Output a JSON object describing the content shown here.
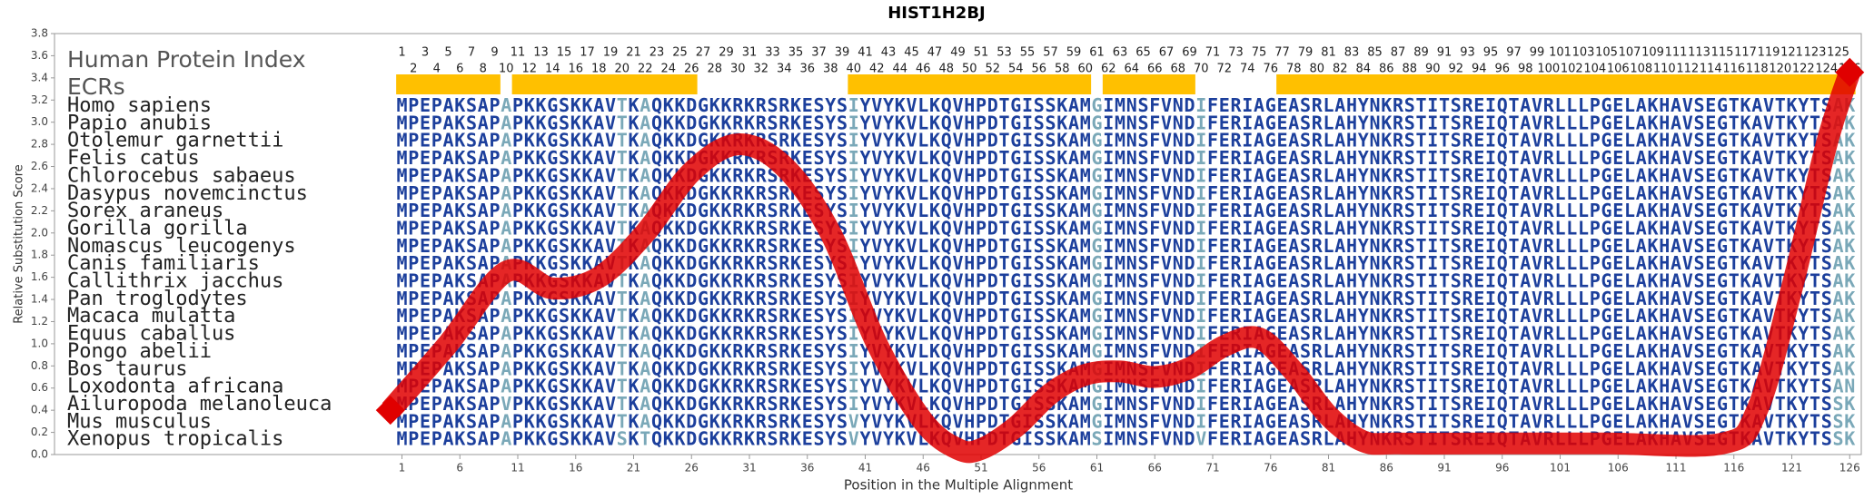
{
  "chart_data": {
    "type": "line",
    "title": "HIST1H2BJ",
    "ylabel": "Relative Substitution Score",
    "xlabel": "Position in the Multiple Alignment",
    "index_label": "Human Protein Index",
    "ecr_label": "ECRs",
    "ecr_color": "#ffc000",
    "ecrs": [
      [
        1,
        9
      ],
      [
        11,
        26
      ],
      [
        40,
        60
      ],
      [
        62,
        69
      ],
      [
        77,
        126
      ]
    ],
    "positions": [
      1,
      2,
      3,
      4,
      5,
      6,
      7,
      8,
      9,
      10,
      11,
      12,
      13,
      14,
      15,
      16,
      17,
      18,
      19,
      20,
      21,
      22,
      23,
      24,
      25,
      26,
      27,
      28,
      29,
      30,
      31,
      32,
      33,
      34,
      35,
      36,
      37,
      38,
      39,
      40,
      41,
      42,
      43,
      44,
      45,
      46,
      47,
      48,
      49,
      50,
      51,
      52,
      53,
      54,
      55,
      56,
      57,
      58,
      59,
      60,
      61,
      62,
      63,
      64,
      65,
      66,
      67,
      68,
      69,
      70,
      71,
      72,
      73,
      74,
      75,
      76,
      77,
      78,
      79,
      80,
      81,
      82,
      83,
      84,
      85,
      86,
      87,
      88,
      89,
      90,
      91,
      92,
      93,
      94,
      95,
      96,
      97,
      98,
      99,
      100,
      101,
      102,
      103,
      104,
      105,
      106,
      107,
      108,
      109,
      110,
      111,
      112,
      113,
      114,
      115,
      116,
      117,
      118,
      119,
      120,
      121,
      122,
      123,
      124,
      125,
      126
    ],
    "species": [
      {
        "name": "Homo sapiens",
        "sequence": "MPEPAKSAPAPKKGSKKAVTKAQKKDGKKRKRSRKESYSIYVYKVLKQVHPDTGISSKAMGIMNSFVNDIFERIAGEASRLAHYNKRSTITSREIQTAVRLLLPGELAKHAVSEGTKAVTKYTSAK"
      },
      {
        "name": "Papio anubis",
        "sequence": "MPEPAKSAPAPKKGSKKAVTKAQKKDGKKRKRSRKESYSIYVYKVLKQVHPDTGISSKAMGIMNSFVNDIFERIAGEASRLAHYNKRSTITSREIQTAVRLLLPGELAKHAVSEGTKAVTKYTSAK"
      },
      {
        "name": "Otolemur garnettii",
        "sequence": "MPEPAKSAPAPKKGSKKAVTKAQKKDGKKRKRSRKESYSIYVYKVLKQVHPDTGISSKAMGIMNSFVNDIFERIAGEASRLAHYNKRSTITSREIQTAVRLLLPGELAKHAVSEGTKAVTKYTSAK"
      },
      {
        "name": "Felis catus",
        "sequence": "MPEPAKSAPAPKKGSKKAVTKAQKKDGKKRKRSRKESYSIYVYKVLKQVHPDTGISSKAMGIMNSFVNDIFERIAGEASRLAHYNKRSTITSREIQTAVRLLLPGELAKHAVSEGTKAVTKYTSAK"
      },
      {
        "name": "Chlorocebus sabaeus",
        "sequence": "MPEPAKSAPAPKKGSKKAVTKAQKKDGKKRKRSRKESYSIYVYKVLKQVHPDTGISSKAMGIMNSFVNDIFERIAGEASRLAHYNKRSTITSREIQTAVRLLLPGELAKHAVSEGTKAVTKYTSAK"
      },
      {
        "name": "Dasypus novemcinctus",
        "sequence": "MPEPAKSAPAPKKGSKKAVTKAQKKDGKKRKRSRKESYSIYVYKVLKQVHPDTGISSKAMGIMNSFVNDIFERIAGEASRLAHYNKRSTITSREIQTAVRLLLPGELAKHAVSEGTKAVTKYTSAK"
      },
      {
        "name": "Sorex araneus",
        "sequence": "MPEPAKSAPAPKKGSKKAVTKAQKKDGKKRKRSRKESYSIYVYKVLKQVHPDTGISSKAMGIMNSFVNDIFERIAGEASRLAHYNKRSTITSREIQTAVRLLLPGELAKHAVSEGTKAVTKYTSAK"
      },
      {
        "name": "Gorilla gorilla",
        "sequence": "MPEPAKSAPAPKKGSKKAVTKAQKKDGKKRKRSRKESYSIYVYKVLKQVHPDTGISSKAMGIMNSFVNDIFERIAGEASRLAHYNKRSTITSREIQTAVRLLLPGELAKHAVSEGTKAVTKYTSAK"
      },
      {
        "name": "Nomascus leucogenys",
        "sequence": "MPEPAKSAPAPKKGSKKAVTKAQKKDGKKRKRSRKESYSIYVYKVLKQVHPDTGISSKAMGIMNSFVNDIFERIAGEASRLAHYNKRSTITSREIQTAVRLLLPGELAKHAVSEGTKAVTKYTSAK"
      },
      {
        "name": "Canis familiaris",
        "sequence": "MPEPAKSAPAPKKGSKKAVTKAQKKDGKKRKRSRKESYSIYVYKVLKQVHPDTGISSKAMGIMNSFVNDIFERIAGEASRLAHYNKRSTITSREIQTAVRLLLPGELAKHAVSEGTKAVTKYTSAK"
      },
      {
        "name": "Callithrix jacchus",
        "sequence": "MPEPAKSAPAPKKGSKKAVTKAQKKDGKKRKRSRKESYSIYVYKVLKQVHPDTGISSKAMGIMNSFVNDIFERIAGEASRLAHYNKRSTITSREIQTAVRLLLPGELAKHAVSEGTKAVTKYTSAK"
      },
      {
        "name": "Pan troglodytes",
        "sequence": "MPEPAKSAPAPKKGSKKAVTKAQKKDGKKRKRSRKESYSIYVYKVLKQVHPDTGISSKAMGIMNSFVNDIFERIAGEASRLAHYNKRSTITSREIQTAVRLLLPGELAKHAVSEGTKAVTKYTSAK"
      },
      {
        "name": "Macaca mulatta",
        "sequence": "MPEPAKSAPAPKKGSKKAVTKAQKKDGKKRKRSRKESYSIYVYKVLKQVHPDTGISSKAMGIMNSFVNDIFERIAGEASRLAHYNKRSTITSREIQTAVRLLLPGELAKHAVSEGTKAVTKYTSAK"
      },
      {
        "name": "Equus caballus",
        "sequence": "MPEPAKSAPAPKKGSKKAVTKAQKKDGKKRKRSRKESYSIYVYKVLKQVHPDTGISSKAMGIMNSFVNDIFERIAGEASRLAHYNKRSTITSREIQTAVRLLLPGELAKHAVSEGTKAVTKYTSAK"
      },
      {
        "name": "Pongo abelii",
        "sequence": "MPEPAKSAPAPKKGSKKAVTKAQKKDGKKRKRSRKESYSIYVYKVLKQVHPDTGISSKAMGIMNSFVNDIFERIAGEASRLAHYNKRSTITSREIQTAVRLLLPGELAKHAVSEGTKAVTKYTSAK"
      },
      {
        "name": "Bos taurus",
        "sequence": "MPEPAKSAPAPKKGSKKAVTKAQKKDGKKRKRSRKESYSIYVYKVLKQVHPDTGISSKAMGIMNSFVNDIFERIAGEASRLAHYNKRSTITSREIQTAVRLLLPGELAKHAVSEGTKAVTKYTSAK"
      },
      {
        "name": "Loxodonta africana",
        "sequence": "MPEPAKSAPAPKKGSKKAVTKAQKKDGKKRKRSRKESYSIYVYKVLKQVHPDTGISSKAMGIMNSFVNDIFERIAGEASRLAHYNKRSTITSREIQTAVRLLLPGELAKHAVSEGTKAVTKYTSAN"
      },
      {
        "name": "Ailuropoda melanoleuca",
        "sequence": "MPEPAKSAPVPKKGSKKAVTKAQKKDGKKRKRSRKESYSIYVYKVLKQVHPDTGISSKAMGIMNSFVNDIFERIAGEASRLAHYNKRSTITSREIQTAVRLLLPGELAKHAVSEGTKAVTKYTSSK"
      },
      {
        "name": "Mus musculus",
        "sequence": "MPEPAKSAPAPKKGSKKAVTKAQKKDGKKRKRSRKESYSVYVYKVLKQVHPDTGISSKAMGIMNSFVNDIFERIAGEASRLAHYNKRSTITSREIQTAVRLLLPGELAKHAVSEGTKAVTKYTSSK"
      },
      {
        "name": "Xenopus tropicalis",
        "sequence": "MPEPAKSAPAPKKGSKKAVSKTQKKDGKKRKRSRKESYSVYVYKVLKQVHPDTGISSKAMSIMNSFVNDVFERIAGEASRLAHYNKRSTITSREIQTAVRLLLPGELAKHAVSEGTKAVTKYTSSK"
      }
    ],
    "series": [
      {
        "color": "#e00000",
        "x": [
          0,
          5,
          10,
          14,
          18,
          22,
          26,
          30,
          34,
          38,
          42,
          46,
          49,
          51,
          54,
          57,
          60,
          63,
          66,
          69,
          72,
          75,
          78,
          81,
          84,
          87,
          95,
          105,
          115,
          118,
          121,
          124,
          126
        ],
        "values": [
          0.4,
          1.0,
          1.65,
          1.5,
          1.6,
          2.0,
          2.55,
          2.8,
          2.6,
          2.0,
          1.0,
          0.3,
          0.05,
          0.05,
          0.25,
          0.55,
          0.72,
          0.75,
          0.7,
          0.78,
          0.98,
          1.05,
          0.75,
          0.35,
          0.12,
          0.1,
          0.1,
          0.1,
          0.1,
          0.4,
          1.5,
          2.8,
          3.45
        ]
      }
    ],
    "xlim": [
      -29,
      127
    ],
    "xticks": [
      1,
      6,
      11,
      16,
      21,
      26,
      31,
      36,
      41,
      46,
      51,
      56,
      61,
      66,
      71,
      76,
      81,
      86,
      91,
      96,
      101,
      106,
      111,
      116,
      121,
      126
    ],
    "ylim": [
      0,
      3.8
    ],
    "yticks": [
      {
        "value": 0,
        "label": "0.0"
      },
      0.2,
      0.4,
      0.6,
      0.8,
      {
        "value": 1,
        "label": "1.0"
      },
      1.2,
      1.4,
      1.6,
      1.8,
      {
        "value": 2,
        "label": "2.0"
      },
      2.2,
      2.4,
      2.6,
      2.8,
      {
        "value": 3,
        "label": "3.0"
      },
      3.2,
      3.4,
      3.6,
      3.8
    ]
  }
}
